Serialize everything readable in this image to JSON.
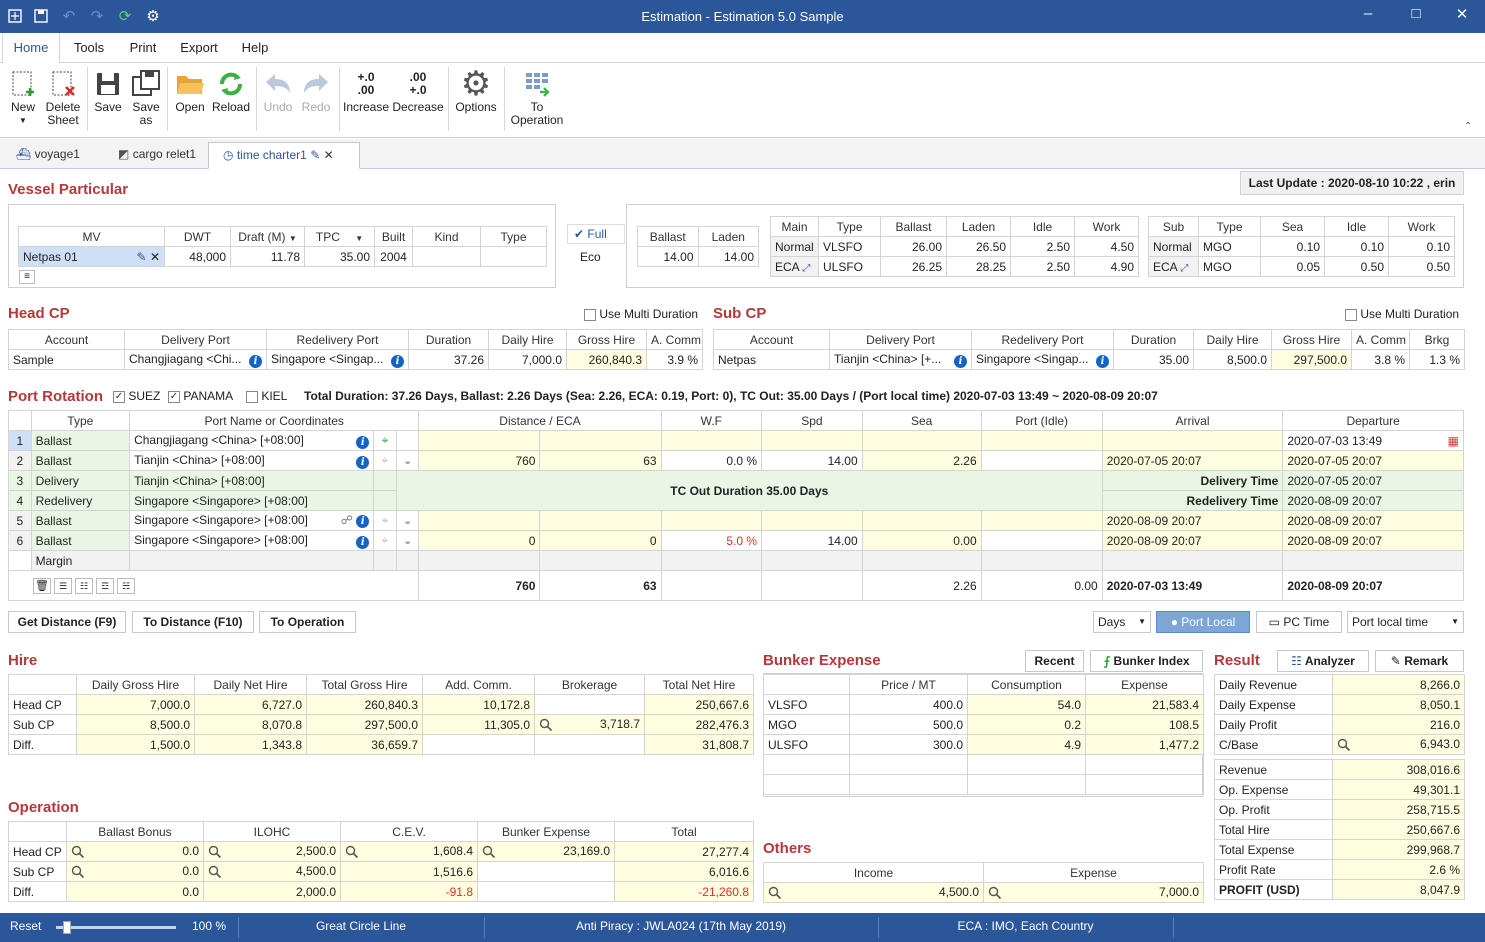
{
  "window": {
    "title": "Estimation - Estimation 5.0 Sample"
  },
  "menu": {
    "tabs": [
      "Home",
      "Tools",
      "Print",
      "Export",
      "Help"
    ]
  },
  "ribbon": {
    "new": "New",
    "delete_sheet": "Delete Sheet",
    "save": "Save",
    "save_as": "Save as",
    "open": "Open",
    "reload": "Reload",
    "undo": "Undo",
    "redo": "Redo",
    "increase": "Increase",
    "increase_icon": "+.0 .00",
    "decrease": "Decrease",
    "decrease_icon": ".00 +.0",
    "options": "Options",
    "to_operation": "To Operation"
  },
  "doc_tabs": [
    "voyage1",
    "cargo relet1",
    "time charter1"
  ],
  "last_update": "Last Update : 2020-08-10 10:22 , erin",
  "vessel": {
    "title": "Vessel Particular",
    "headers": [
      "MV",
      "DWT",
      "Draft (M)",
      "TPC",
      "Built",
      "Kind",
      "Type"
    ],
    "row": {
      "mv": "Netpas 01",
      "dwt": "48,000",
      "draft": "11.78",
      "tpc": "35.00",
      "built": "2004",
      "kind": "",
      "type": ""
    },
    "mode_full": "Full",
    "mode_eco": "Eco",
    "speed_headers": [
      "Ballast",
      "Laden"
    ],
    "speed_values": [
      "14.00",
      "14.00"
    ],
    "main_headers": [
      "Main",
      "Type",
      "Ballast",
      "Laden",
      "Idle",
      "Work"
    ],
    "main_rows": [
      [
        "Normal",
        "VLSFO",
        "26.00",
        "26.50",
        "2.50",
        "4.50"
      ],
      [
        "ECA",
        "ULSFO",
        "26.25",
        "28.25",
        "2.50",
        "4.90"
      ]
    ],
    "sub_headers": [
      "Sub",
      "Type",
      "Sea",
      "Idle",
      "Work"
    ],
    "sub_rows": [
      [
        "Normal",
        "MGO",
        "0.10",
        "0.10",
        "0.10"
      ],
      [
        "ECA",
        "MGO",
        "0.05",
        "0.50",
        "0.50"
      ]
    ]
  },
  "head_cp": {
    "title": "Head CP",
    "multi": "Use Multi Duration",
    "headers": [
      "Account",
      "Delivery Port",
      "Redelivery Port",
      "Duration",
      "Daily Hire",
      "Gross Hire",
      "A. Comm"
    ],
    "row": [
      "Sample",
      "Changjiagang <Chi...",
      "Singapore <Singap...",
      "37.26",
      "7,000.0",
      "260,840.3",
      "3.9 %"
    ]
  },
  "sub_cp": {
    "title": "Sub CP",
    "multi": "Use Multi Duration",
    "headers": [
      "Account",
      "Delivery Port",
      "Redelivery Port",
      "Duration",
      "Daily Hire",
      "Gross Hire",
      "A. Comm",
      "Brkg"
    ],
    "row": [
      "Netpas",
      "Tianjin <China> [+...",
      "Singapore <Singap...",
      "35.00",
      "8,500.0",
      "297,500.0",
      "3.8 %",
      "1.3 %"
    ]
  },
  "port_rotation": {
    "title": "Port Rotation",
    "suez": "SUEZ",
    "panama": "PANAMA",
    "kiel": "KIEL",
    "summary": "Total Duration: 37.26 Days, Ballast: 2.26 Days (Sea: 2.26, ECA: 0.19, Port: 0), TC Out: 35.00 Days / (Port local time) 2020-07-03 13:49 ~ 2020-08-09 20:07",
    "headers": [
      "Type",
      "Port Name or Coordinates",
      "Distance / ECA",
      "W.F",
      "Spd",
      "Sea",
      "Port (Idle)",
      "Arrival",
      "Departure"
    ],
    "rows": [
      {
        "n": "1",
        "type": "Ballast",
        "port": "Changjiagang <China> [+08:00]",
        "dist": "",
        "eca": "",
        "wf": "",
        "spd": "",
        "sea": "",
        "idle": "",
        "arr": "",
        "dep": "2020-07-03 13:49"
      },
      {
        "n": "2",
        "type": "Ballast",
        "port": "Tianjin <China> [+08:00]",
        "dist": "760",
        "eca": "63",
        "wf": "0.0 %",
        "spd": "14.00",
        "sea": "2.26",
        "idle": "",
        "arr": "2020-07-05 20:07",
        "dep": "2020-07-05 20:07"
      },
      {
        "n": "3",
        "type": "Delivery",
        "port": "Tianjin <China> [+08:00]",
        "arr": "Delivery Time",
        "dep": "2020-07-05 20:07"
      },
      {
        "n": "4",
        "type": "Redelivery",
        "port": "Singapore <Singapore> [+08:00]",
        "arr": "Redelivery Time",
        "dep": "2020-08-09 20:07"
      },
      {
        "n": "5",
        "type": "Ballast",
        "port": "Singapore <Singapore> [+08:00]",
        "dist": "",
        "eca": "",
        "wf": "",
        "spd": "",
        "sea": "",
        "idle": "",
        "arr": "2020-08-09 20:07",
        "dep": "2020-08-09 20:07"
      },
      {
        "n": "6",
        "type": "Ballast",
        "port": "Singapore <Singapore> [+08:00]",
        "dist": "0",
        "eca": "0",
        "wf": "5.0 %",
        "spd": "14.00",
        "sea": "0.00",
        "idle": "",
        "arr": "2020-08-09 20:07",
        "dep": "2020-08-09 20:07"
      }
    ],
    "tc_out": "TC Out Duration 35.00 Days",
    "margin": "Margin",
    "totals": {
      "dist": "760",
      "eca": "63",
      "sea": "2.26",
      "idle": "0.00",
      "arr": "2020-07-03 13:49",
      "dep": "2020-08-09 20:07"
    }
  },
  "actions": {
    "get_distance": "Get Distance (F9)",
    "to_distance": "To Distance (F10)",
    "to_operation": "To Operation",
    "days": "Days",
    "port_local": "Port Local",
    "pc_time": "PC Time",
    "port_local_time": "Port local time"
  },
  "hire": {
    "title": "Hire",
    "headers": [
      "",
      "Daily Gross Hire",
      "Daily Net Hire",
      "Total Gross Hire",
      "Add. Comm.",
      "Brokerage",
      "Total Net Hire"
    ],
    "rows": [
      [
        "Head CP",
        "7,000.0",
        "6,727.0",
        "260,840.3",
        "10,172.8",
        "",
        "250,667.6"
      ],
      [
        "Sub CP",
        "8,500.0",
        "8,070.8",
        "297,500.0",
        "11,305.0",
        "3,718.7",
        "282,476.3"
      ],
      [
        "Diff.",
        "1,500.0",
        "1,343.8",
        "36,659.7",
        "",
        "",
        "31,808.7"
      ]
    ]
  },
  "bunker": {
    "title": "Bunker Expense",
    "recent": "Recent",
    "index": "Bunker Index",
    "headers": [
      "",
      "Price / MT",
      "Consumption",
      "Expense"
    ],
    "rows": [
      [
        "VLSFO",
        "400.0",
        "54.0",
        "21,583.4"
      ],
      [
        "MGO",
        "500.0",
        "0.2",
        "108.5"
      ],
      [
        "ULSFO",
        "300.0",
        "4.9",
        "1,477.2"
      ]
    ]
  },
  "result": {
    "title": "Result",
    "analyzer": "Analyzer",
    "remark": "Remark",
    "rows1": [
      [
        "Daily Revenue",
        "8,266.0"
      ],
      [
        "Daily Expense",
        "8,050.1"
      ],
      [
        "Daily Profit",
        "216.0"
      ],
      [
        "C/Base",
        "6,943.0"
      ]
    ],
    "rows2": [
      [
        "Revenue",
        "308,016.6"
      ],
      [
        "Op. Expense",
        "49,301.1"
      ],
      [
        "Op. Profit",
        "258,715.5"
      ],
      [
        "Total Hire",
        "250,667.6"
      ],
      [
        "Total Expense",
        "299,968.7"
      ],
      [
        "Profit Rate",
        "2.6 %"
      ],
      [
        "PROFIT (USD)",
        "8,047.9"
      ]
    ]
  },
  "operation": {
    "title": "Operation",
    "headers": [
      "",
      "Ballast Bonus",
      "ILOHC",
      "C.E.V.",
      "Bunker Expense",
      "Total"
    ],
    "rows": [
      [
        "Head CP",
        "0.0",
        "2,500.0",
        "1,608.4",
        "23,169.0",
        "27,277.4"
      ],
      [
        "Sub CP",
        "0.0",
        "4,500.0",
        "1,516.6",
        "",
        "6,016.6"
      ],
      [
        "Diff.",
        "0.0",
        "2,000.0",
        "-91.8",
        "",
        "-21,260.8"
      ]
    ]
  },
  "others": {
    "title": "Others",
    "headers": [
      "Income",
      "Expense"
    ],
    "income": "4,500.0",
    "expense": "7,000.0"
  },
  "status": {
    "reset": "Reset",
    "zoom": "100 %",
    "great_circle": "Great Circle Line",
    "piracy": "Anti Piracy : JWLA024 (17th May 2019)",
    "eca": "ECA : IMO, Each Country"
  }
}
